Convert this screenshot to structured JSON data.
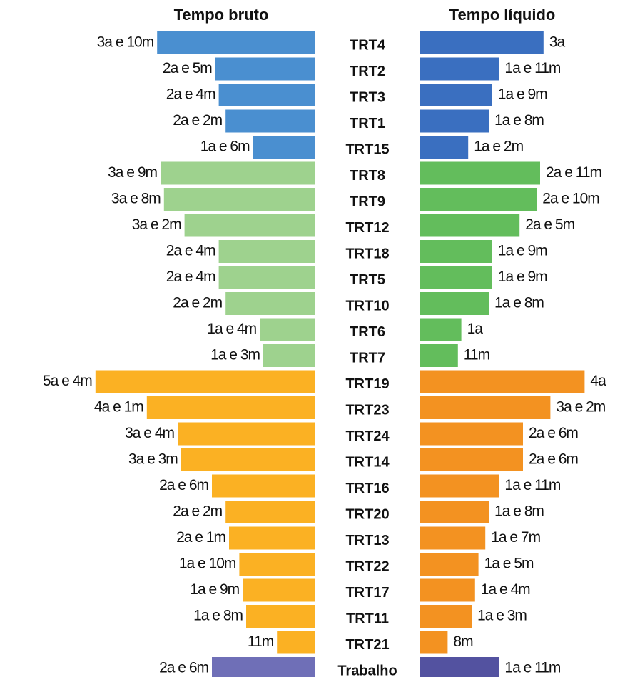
{
  "chart_data": {
    "type": "butterfly",
    "categories": [
      "TRT4",
      "TRT2",
      "TRT3",
      "TRT1",
      "TRT15",
      "TRT8",
      "TRT9",
      "TRT12",
      "TRT18",
      "TRT5",
      "TRT10",
      "TRT6",
      "TRT7",
      "TRT19",
      "TRT23",
      "TRT24",
      "TRT14",
      "TRT16",
      "TRT20",
      "TRT13",
      "TRT22",
      "TRT17",
      "TRT11",
      "TRT21",
      "Trabalho"
    ],
    "series": [
      {
        "name": "Tempo bruto",
        "values": [
          46,
          29,
          28,
          26,
          18,
          45,
          44,
          38,
          28,
          28,
          26,
          16,
          15,
          64,
          49,
          40,
          39,
          30,
          26,
          25,
          22,
          21,
          20,
          11,
          30
        ],
        "value_labels": [
          "3a e 10m",
          "2a e 5m",
          "2a e 4m",
          "2a e 2m",
          "1a e 6m",
          "3a e 9m",
          "3a e 8m",
          "3a e 2m",
          "2a e 4m",
          "2a e 4m",
          "2a e 2m",
          "1a e 4m",
          "1a e 3m",
          "5a e 4m",
          "4a e 1m",
          "3a e 4m",
          "3a e 3m",
          "2a e 6m",
          "2a e 2m",
          "2a e 1m",
          "1a e 10m",
          "1a e 9m",
          "1a e 8m",
          "11m",
          "2a e 6m"
        ],
        "colors": [
          "#4a8fd0",
          "#4a8fd0",
          "#4a8fd0",
          "#4a8fd0",
          "#4a8fd0",
          "#9ed28e",
          "#9ed28e",
          "#9ed28e",
          "#9ed28e",
          "#9ed28e",
          "#9ed28e",
          "#9ed28e",
          "#9ed28e",
          "#fbb123",
          "#fbb123",
          "#fbb123",
          "#fbb123",
          "#fbb123",
          "#fbb123",
          "#fbb123",
          "#fbb123",
          "#fbb123",
          "#fbb123",
          "#fbb123",
          "#6f6fb7"
        ]
      },
      {
        "name": "Tempo líquido",
        "values": [
          36,
          23,
          21,
          20,
          14,
          35,
          34,
          29,
          21,
          21,
          20,
          12,
          11,
          48,
          38,
          30,
          30,
          23,
          20,
          19,
          17,
          16,
          15,
          8,
          23
        ],
        "value_labels": [
          "3a",
          "1a e 11m",
          "1a e 9m",
          "1a e 8m",
          "1a e 2m",
          "2a e 11m",
          "2a e 10m",
          "2a e 5m",
          "1a e 9m",
          "1a e 9m",
          "1a e 8m",
          "1a",
          "11m",
          "4a",
          "3a e 2m",
          "2a e 6m",
          "2a e 6m",
          "1a e 11m",
          "1a e 8m",
          "1a e 7m",
          "1a e 5m",
          "1a e 4m",
          "1a e 3m",
          "8m",
          "1a e 11m"
        ],
        "colors": [
          "#3a6fc0",
          "#3a6fc0",
          "#3a6fc0",
          "#3a6fc0",
          "#3a6fc0",
          "#63bd5c",
          "#63bd5c",
          "#63bd5c",
          "#63bd5c",
          "#63bd5c",
          "#63bd5c",
          "#63bd5c",
          "#63bd5c",
          "#f39221",
          "#f39221",
          "#f39221",
          "#f39221",
          "#f39221",
          "#f39221",
          "#f39221",
          "#f39221",
          "#f39221",
          "#f39221",
          "#f39221",
          "#5352a0"
        ]
      }
    ]
  }
}
